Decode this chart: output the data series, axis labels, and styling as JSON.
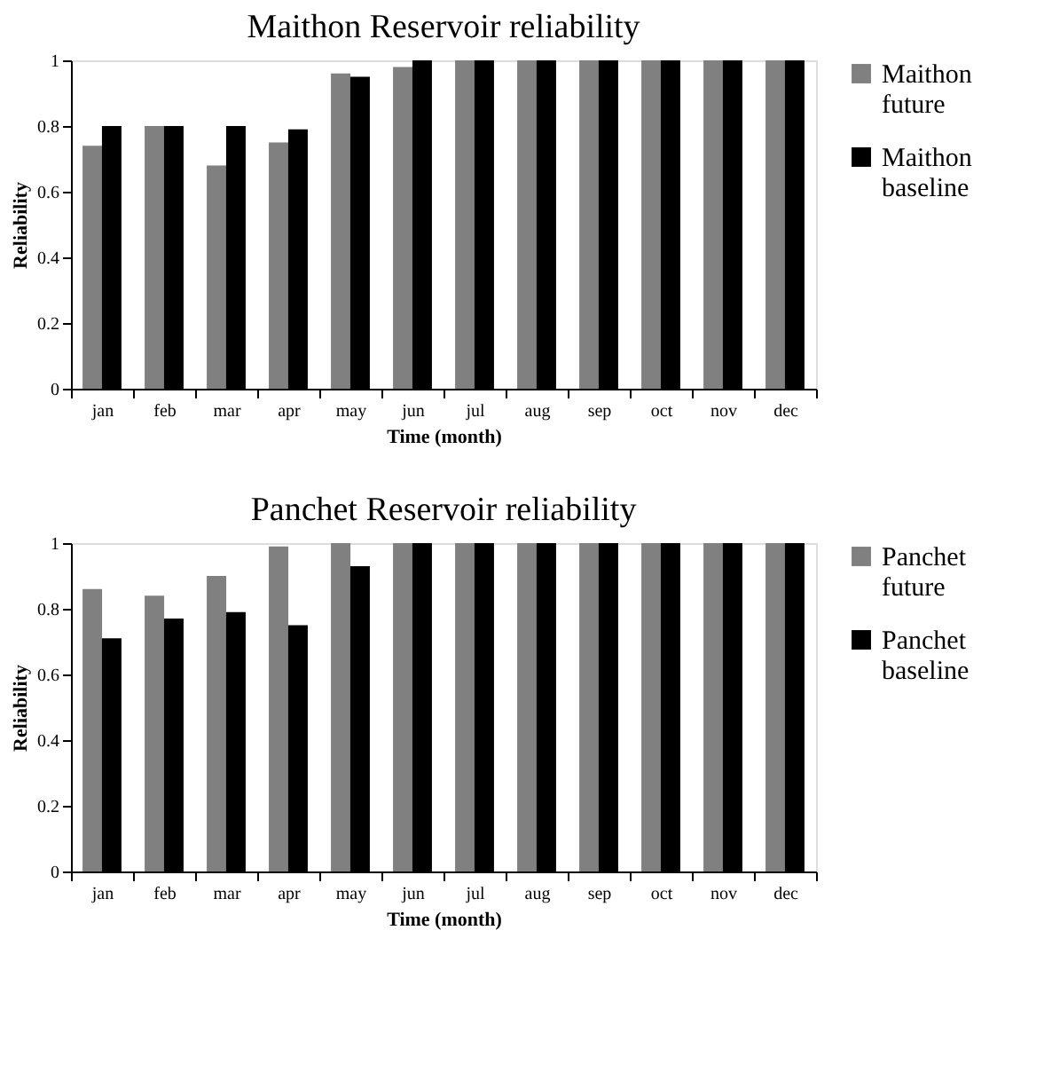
{
  "chart_data": [
    {
      "type": "bar",
      "title": "Maithon Reservoir reliability",
      "xlabel": "Time (month)",
      "ylabel": "Reliability",
      "categories": [
        "jan",
        "feb",
        "mar",
        "apr",
        "may",
        "jun",
        "jul",
        "aug",
        "sep",
        "oct",
        "nov",
        "dec"
      ],
      "series": [
        {
          "name": "Maithon future",
          "color": "#808080",
          "values": [
            0.74,
            0.8,
            0.68,
            0.75,
            0.96,
            0.98,
            1,
            1,
            1,
            1,
            1,
            1
          ]
        },
        {
          "name": "Maithon baseline",
          "color": "#000000",
          "values": [
            0.8,
            0.8,
            0.8,
            0.79,
            0.95,
            1,
            1,
            1,
            1,
            1,
            1,
            1
          ]
        }
      ],
      "ylim": [
        0,
        1
      ],
      "yticks": [
        0,
        0.2,
        0.4,
        0.6,
        0.8,
        1
      ],
      "grid": false,
      "legend": "right"
    },
    {
      "type": "bar",
      "title": "Panchet Reservoir reliability",
      "xlabel": "Time (month)",
      "ylabel": "Reliability",
      "categories": [
        "jan",
        "feb",
        "mar",
        "apr",
        "may",
        "jun",
        "jul",
        "aug",
        "sep",
        "oct",
        "nov",
        "dec"
      ],
      "series": [
        {
          "name": "Panchet future",
          "color": "#808080",
          "values": [
            0.86,
            0.84,
            0.9,
            0.99,
            1,
            1,
            1,
            1,
            1,
            1,
            1,
            1
          ]
        },
        {
          "name": "Panchet baseline",
          "color": "#000000",
          "values": [
            0.71,
            0.77,
            0.79,
            0.75,
            0.93,
            1,
            1,
            1,
            1,
            1,
            1,
            1
          ]
        }
      ],
      "ylim": [
        0,
        1
      ],
      "yticks": [
        0,
        0.2,
        0.4,
        0.6,
        0.8,
        1
      ],
      "grid": false,
      "legend": "right"
    }
  ]
}
